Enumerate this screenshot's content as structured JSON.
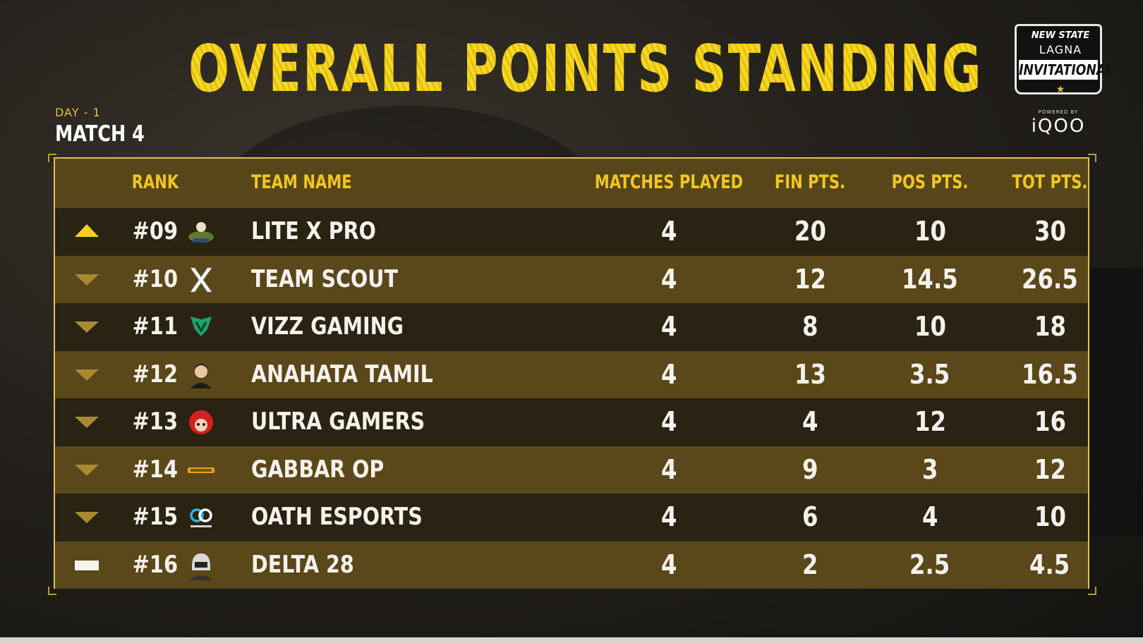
{
  "header": {
    "title": "OVERALL POINTS STANDING",
    "day": "DAY - 1",
    "match": "MATCH 4"
  },
  "event_logo": {
    "top": "NEW STATE",
    "mid": "LAGNA",
    "name": "INVITATIONAL",
    "powered": "POWERED BY",
    "sponsor": "iQOO"
  },
  "columns": {
    "rank": "RANK",
    "team": "TEAM NAME",
    "matches": "MATCHES PLAYED",
    "fin": "FIN PTS.",
    "pos": "POS PTS.",
    "tot": "TOT PTS."
  },
  "colors": {
    "accent_yellow": "#f3cd24",
    "row_dark": "#2a2212",
    "row_light": "#5a471a",
    "trend_down": "#a98a30"
  },
  "rows": [
    {
      "trend": "up",
      "rank": "#09",
      "logo": "lite-x-pro-logo",
      "team": "LITE X PRO",
      "matches": "4",
      "fin": "20",
      "pos": "10",
      "tot": "30"
    },
    {
      "trend": "down",
      "rank": "#10",
      "logo": "team-scout-logo",
      "team": "TEAM SCOUT",
      "matches": "4",
      "fin": "12",
      "pos": "14.5",
      "tot": "26.5"
    },
    {
      "trend": "down",
      "rank": "#11",
      "logo": "vizz-gaming-logo",
      "team": "VIZZ GAMING",
      "matches": "4",
      "fin": "8",
      "pos": "10",
      "tot": "18"
    },
    {
      "trend": "down",
      "rank": "#12",
      "logo": "anahata-tamil-logo",
      "team": "ANAHATA TAMIL",
      "matches": "4",
      "fin": "13",
      "pos": "3.5",
      "tot": "16.5"
    },
    {
      "trend": "down",
      "rank": "#13",
      "logo": "ultra-gamers-logo",
      "team": "ULTRA GAMERS",
      "matches": "4",
      "fin": "4",
      "pos": "12",
      "tot": "16"
    },
    {
      "trend": "down",
      "rank": "#14",
      "logo": "gabbar-op-logo",
      "team": "GABBAR OP",
      "matches": "4",
      "fin": "9",
      "pos": "3",
      "tot": "12"
    },
    {
      "trend": "down",
      "rank": "#15",
      "logo": "oath-esports-logo",
      "team": "OATH ESPORTS",
      "matches": "4",
      "fin": "6",
      "pos": "4",
      "tot": "10"
    },
    {
      "trend": "same",
      "rank": "#16",
      "logo": "delta-28-logo",
      "team": "DELTA 28",
      "matches": "4",
      "fin": "2",
      "pos": "2.5",
      "tot": "4.5"
    }
  ]
}
